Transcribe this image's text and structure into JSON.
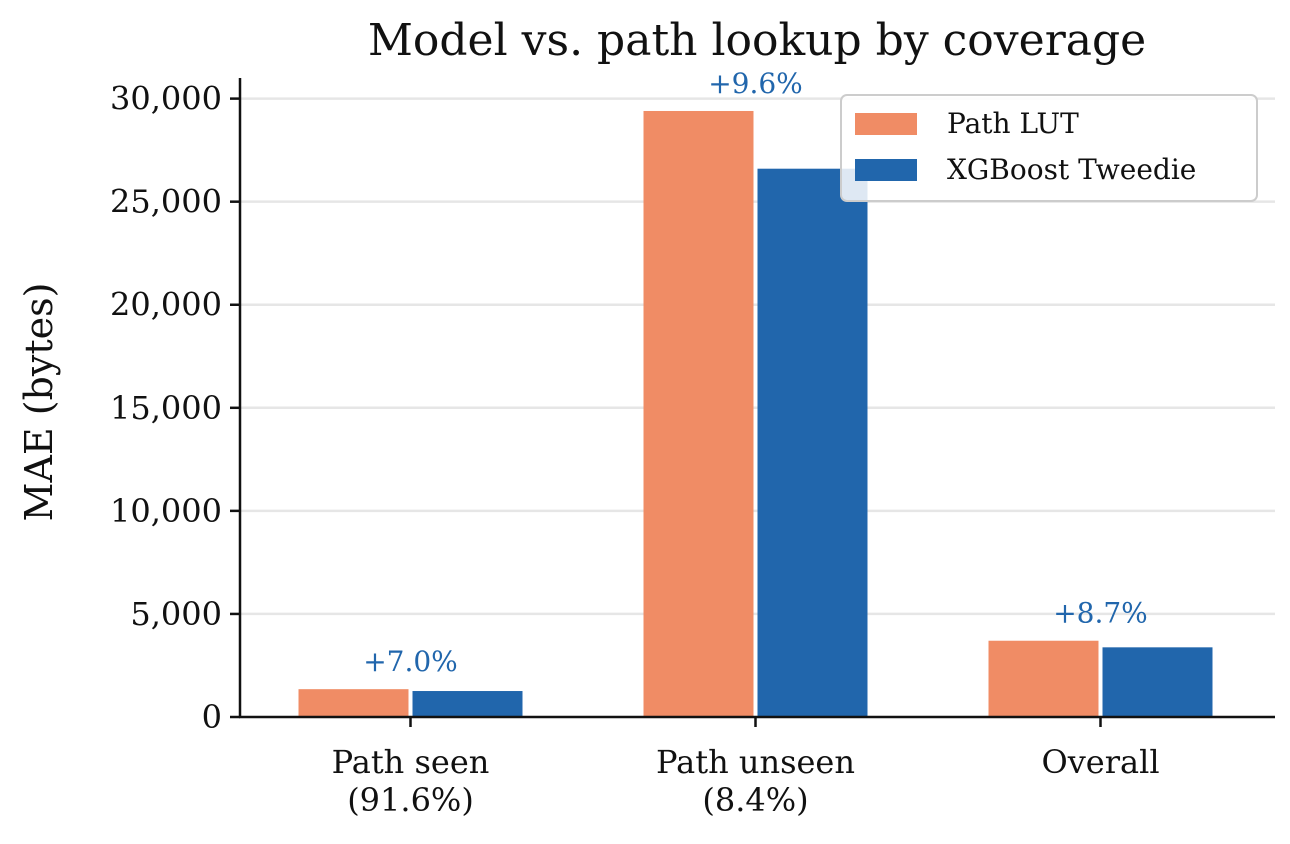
{
  "chart_data": {
    "type": "bar",
    "title": "Model vs. path lookup by coverage",
    "xlabel": "",
    "ylabel": "MAE (bytes)",
    "ylim": [
      0,
      31000
    ],
    "yticks": [
      0,
      5000,
      10000,
      15000,
      20000,
      25000,
      30000
    ],
    "ytick_labels": [
      "0",
      "5,000",
      "10,000",
      "15,000",
      "20,000",
      "25,000",
      "30,000"
    ],
    "grid": "horizontal",
    "legend_position": "top-right",
    "categories": [
      [
        "Path seen",
        "(91.6%)"
      ],
      [
        "Path unseen",
        "(8.4%)"
      ],
      [
        "Overall",
        ""
      ]
    ],
    "series": [
      {
        "name": "Path LUT",
        "color": "#f08c65",
        "values": [
          1350,
          29400,
          3700
        ]
      },
      {
        "name": "XGBoost Tweedie",
        "color": "#2166ac",
        "values": [
          1260,
          26600,
          3380
        ]
      }
    ],
    "annotations": [
      "+7.0%",
      "+9.6%",
      "+8.7%"
    ],
    "annotation_color": "#2166ac",
    "grid_color": "#e6e6e6"
  }
}
